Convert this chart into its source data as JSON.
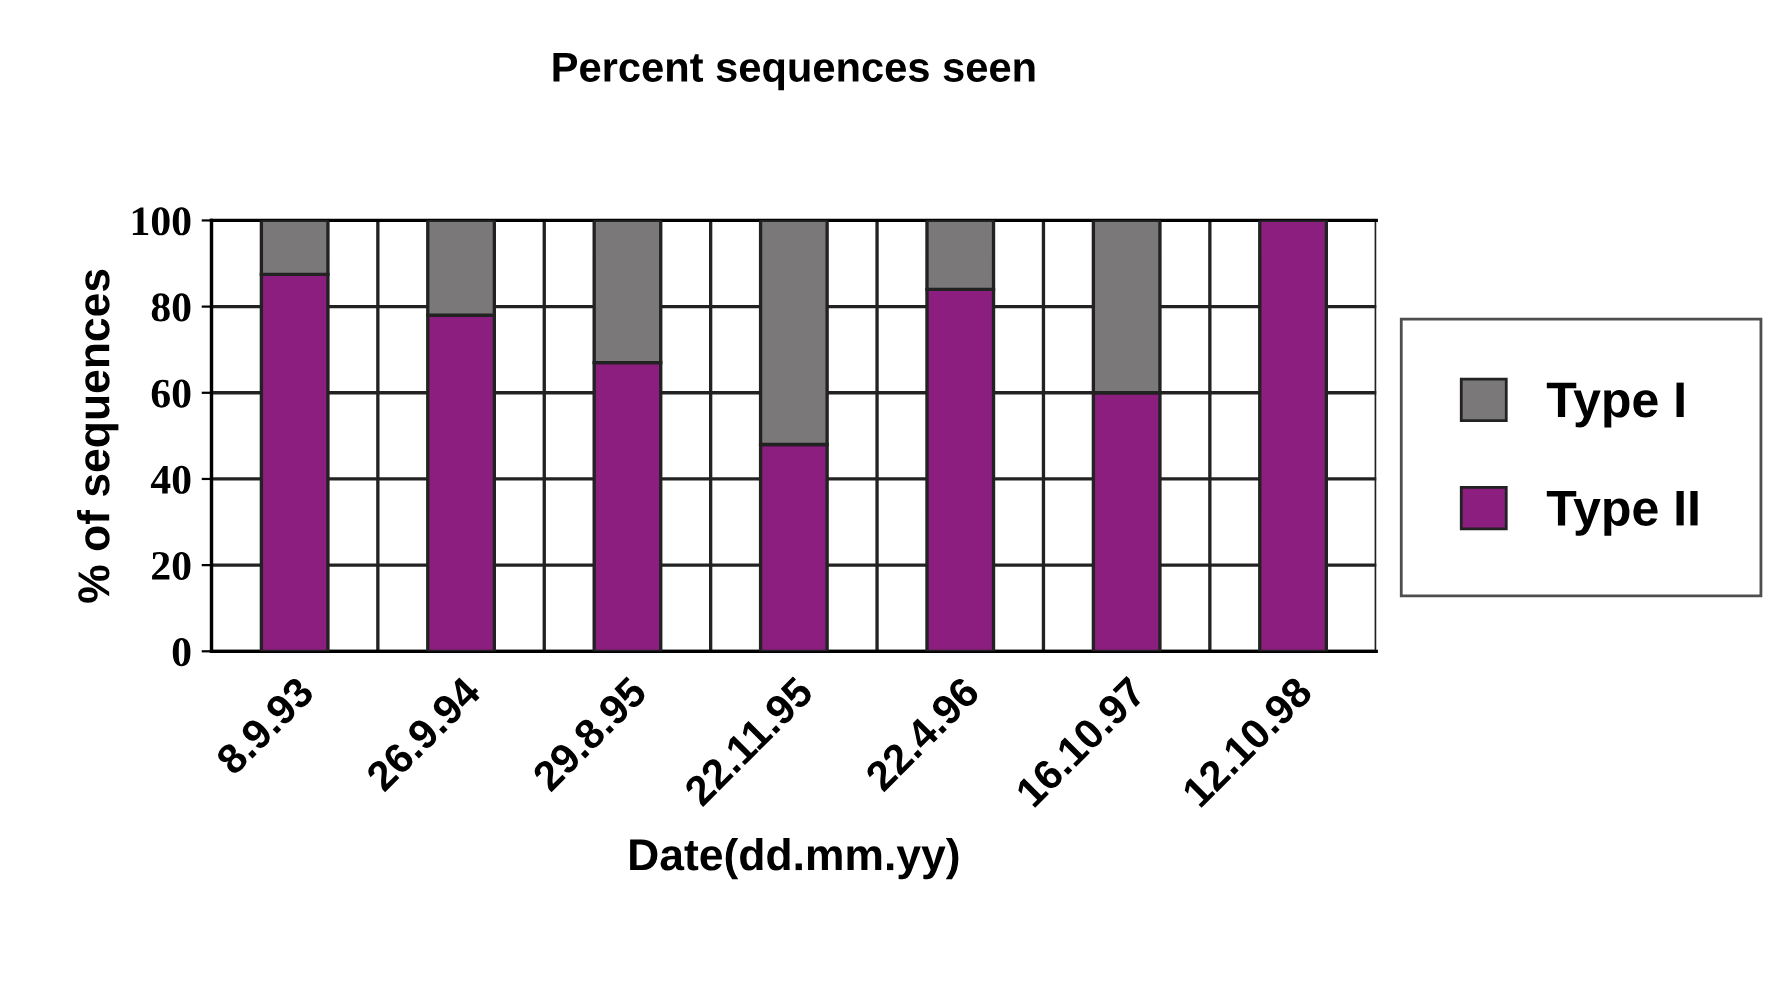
{
  "chart_data": {
    "type": "bar",
    "title": "Percent sequences seen",
    "xlabel": "Date(dd.mm.yy)",
    "ylabel": "% of sequences",
    "categories": [
      "8.9.93",
      "26.9.94",
      "29.8.95",
      "22.11.95",
      "22.4.96",
      "16.10.97",
      "12.10.98"
    ],
    "stacked": true,
    "series": [
      {
        "name": "Type II",
        "color": "#8b1e7e",
        "values": [
          87.5,
          78,
          67,
          48,
          84,
          60,
          100
        ]
      },
      {
        "name": "Type I",
        "color": "#7a7878",
        "values": [
          12.5,
          22,
          33,
          52,
          16,
          40,
          null
        ]
      }
    ],
    "ylim": [
      0,
      100
    ],
    "yticks": [
      0,
      20,
      40,
      60,
      80,
      100
    ],
    "grid": true,
    "legend": "right"
  }
}
